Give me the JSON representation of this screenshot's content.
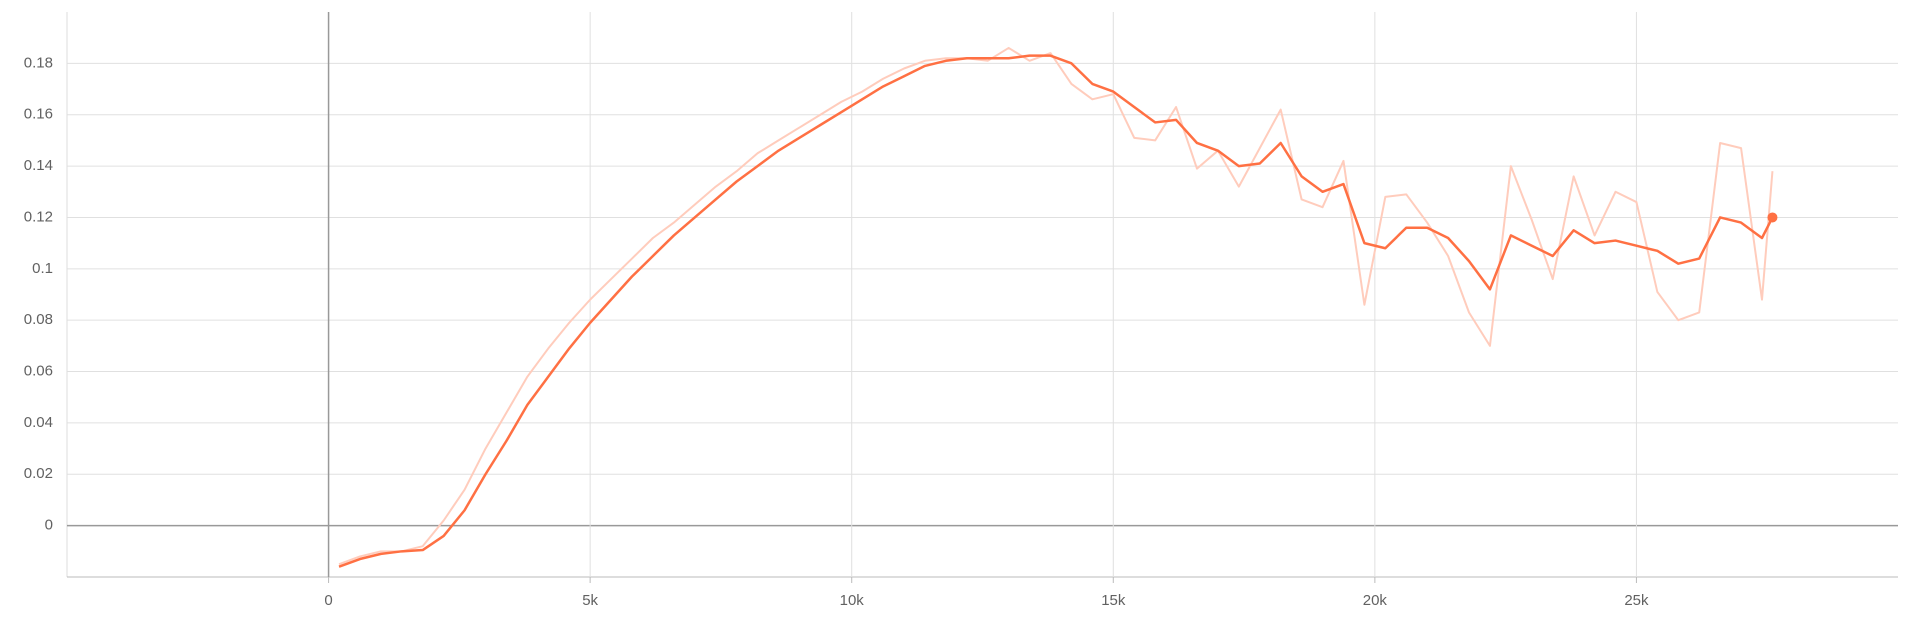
{
  "chart_data": {
    "type": "line",
    "x": [
      200,
      600,
      1000,
      1400,
      1800,
      2200,
      2600,
      3000,
      3400,
      3800,
      4200,
      4600,
      5000,
      5400,
      5800,
      6200,
      6600,
      7000,
      7400,
      7800,
      8200,
      8600,
      9000,
      9400,
      9800,
      10200,
      10600,
      11000,
      11400,
      11800,
      12200,
      12600,
      13000,
      13400,
      13800,
      14200,
      14600,
      15000,
      15400,
      15800,
      16200,
      16600,
      17000,
      17400,
      17800,
      18200,
      18600,
      19000,
      19400,
      19800,
      20200,
      20600,
      21000,
      21400,
      21800,
      22200,
      22600,
      23000,
      23400,
      23800,
      24200,
      24600,
      25000,
      25400,
      25800,
      26200,
      26600,
      27000,
      27400,
      27600
    ],
    "series": [
      {
        "color": "#ffccbc",
        "values": [
          -0.015,
          -0.012,
          -0.01,
          -0.01,
          -0.008,
          0.002,
          0.014,
          0.03,
          0.044,
          0.058,
          0.069,
          0.079,
          0.088,
          0.096,
          0.104,
          0.112,
          0.118,
          0.125,
          0.132,
          0.138,
          0.145,
          0.15,
          0.155,
          0.16,
          0.165,
          0.169,
          0.174,
          0.178,
          0.181,
          0.182,
          0.182,
          0.181,
          0.186,
          0.181,
          0.184,
          0.172,
          0.166,
          0.168,
          0.151,
          0.15,
          0.163,
          0.139,
          0.146,
          0.132,
          0.147,
          0.162,
          0.127,
          0.124,
          0.142,
          0.086,
          0.128,
          0.129,
          0.118,
          0.105,
          0.083,
          0.07,
          0.14,
          0.119,
          0.096,
          0.136,
          0.113,
          0.13,
          0.126,
          0.091,
          0.08,
          0.083,
          0.149,
          0.147,
          0.088,
          0.138
        ]
      },
      {
        "color": "#ff7043",
        "values": [
          -0.016,
          -0.013,
          -0.011,
          -0.01,
          -0.0095,
          -0.004,
          0.006,
          0.02,
          0.033,
          0.047,
          0.058,
          0.069,
          0.079,
          0.088,
          0.097,
          0.105,
          0.113,
          0.12,
          0.127,
          0.134,
          0.14,
          0.146,
          0.151,
          0.156,
          0.161,
          0.166,
          0.171,
          0.175,
          0.179,
          0.181,
          0.182,
          0.182,
          0.182,
          0.183,
          0.183,
          0.18,
          0.172,
          0.169,
          0.163,
          0.157,
          0.158,
          0.149,
          0.146,
          0.14,
          0.141,
          0.149,
          0.136,
          0.13,
          0.133,
          0.11,
          0.108,
          0.116,
          0.116,
          0.112,
          0.103,
          0.092,
          0.113,
          0.109,
          0.105,
          0.115,
          0.11,
          0.111,
          0.109,
          0.107,
          0.102,
          0.104,
          0.12,
          0.118,
          0.112,
          0.12
        ]
      }
    ],
    "xlim": [
      -5000,
      30000
    ],
    "ylim": [
      -0.02,
      0.2
    ],
    "xticks": [
      0,
      {
        "value": 5000,
        "label": "5k"
      },
      {
        "value": 10000,
        "label": "10k"
      },
      {
        "value": 15000,
        "label": "15k"
      },
      {
        "value": 20000,
        "label": "20k"
      },
      {
        "value": 25000,
        "label": "25k"
      }
    ],
    "yticks": [
      0,
      0.02,
      0.04,
      0.06,
      0.08,
      0.1,
      0.12,
      0.14,
      0.16,
      0.18
    ],
    "grid": true
  }
}
